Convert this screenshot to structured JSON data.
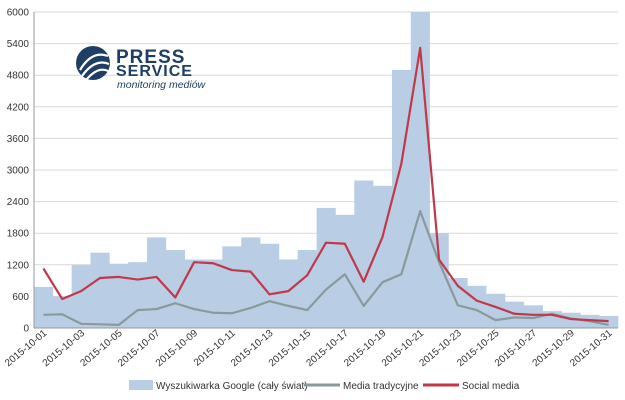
{
  "logo": {
    "line1": "PRESS",
    "line2": "SERVICE",
    "tagline": "monitoring mediów"
  },
  "chart_data": {
    "type": "bar",
    "ylim": [
      0,
      6000
    ],
    "yticks": [
      0,
      600,
      1200,
      1800,
      2400,
      3000,
      3600,
      4200,
      4800,
      5400,
      6000
    ],
    "grid": true,
    "legend_position": "bottom",
    "categories": [
      "2015-10-01",
      "2015-10-02",
      "2015-10-03",
      "2015-10-04",
      "2015-10-05",
      "2015-10-06",
      "2015-10-07",
      "2015-10-08",
      "2015-10-09",
      "2015-10-10",
      "2015-10-11",
      "2015-10-12",
      "2015-10-13",
      "2015-10-14",
      "2015-10-15",
      "2015-10-16",
      "2015-10-17",
      "2015-10-18",
      "2015-10-19",
      "2015-10-20",
      "2015-10-21",
      "2015-10-22",
      "2015-10-23",
      "2015-10-24",
      "2015-10-25",
      "2015-10-26",
      "2015-10-27",
      "2015-10-28",
      "2015-10-29",
      "2015-10-30",
      "2015-10-31"
    ],
    "x_tick_labels": [
      "2015-10-01",
      "2015-10-03",
      "2015-10-05",
      "2015-10-07",
      "2015-10-09",
      "2015-10-11",
      "2015-10-13",
      "2015-10-15",
      "2015-10-17",
      "2015-10-19",
      "2015-10-21",
      "2015-10-23",
      "2015-10-25",
      "2015-10-27",
      "2015-10-29",
      "2015-10-31"
    ],
    "series": [
      {
        "name": "Wyszukiwarka Google (cały świat)",
        "kind": "bar",
        "color": "#b9cde5",
        "values": [
          780,
          600,
          1200,
          1430,
          1220,
          1250,
          1720,
          1480,
          1300,
          1300,
          1550,
          1720,
          1600,
          1300,
          1480,
          2280,
          2150,
          2800,
          2700,
          4900,
          6000,
          1800,
          950,
          800,
          650,
          500,
          430,
          320,
          290,
          250,
          230
        ]
      },
      {
        "name": "Media tradycyjne",
        "kind": "line",
        "color": "#8a9a9a",
        "values": [
          250,
          260,
          80,
          70,
          60,
          340,
          360,
          470,
          360,
          290,
          280,
          380,
          510,
          420,
          340,
          730,
          1020,
          420,
          870,
          1020,
          2220,
          1250,
          430,
          340,
          150,
          200,
          190,
          270,
          180,
          130,
          60
        ]
      },
      {
        "name": "Social media",
        "kind": "line",
        "color": "#c0394b",
        "values": [
          1130,
          550,
          700,
          950,
          970,
          920,
          970,
          580,
          1250,
          1230,
          1100,
          1070,
          640,
          700,
          1000,
          1620,
          1600,
          880,
          1730,
          3120,
          5320,
          1300,
          800,
          520,
          400,
          270,
          250,
          250,
          170,
          150,
          130
        ]
      }
    ]
  }
}
